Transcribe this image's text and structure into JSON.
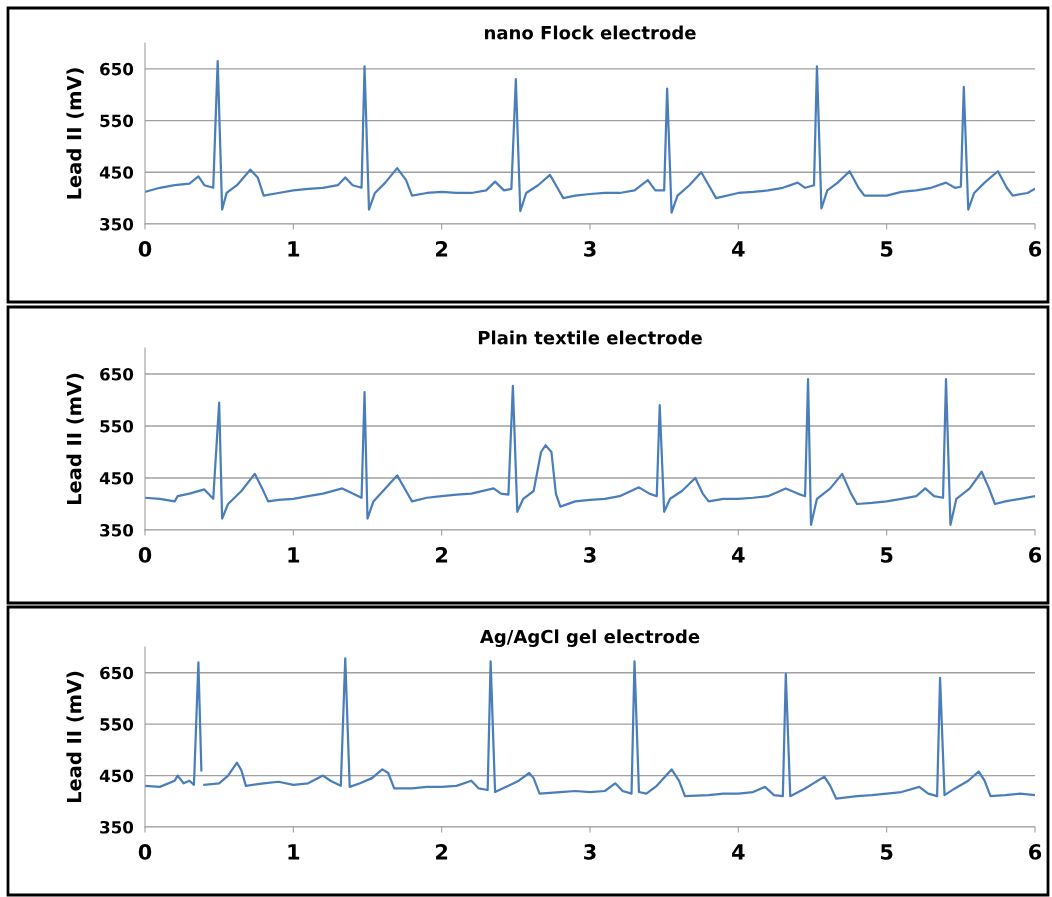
{
  "chart_data": [
    {
      "type": "line",
      "title": "nano Flock electrode",
      "ylabel": "Lead II (mV)",
      "xlim": [
        0,
        6
      ],
      "xticks": [
        0,
        1,
        2,
        3,
        4,
        5,
        6
      ],
      "ylim": [
        350,
        700
      ],
      "yticks": [
        350,
        450,
        550,
        650
      ],
      "grid": "y",
      "legend": false,
      "marker": "none",
      "line_style": "solid",
      "series": [
        {
          "color": "#4a7ebb",
          "x": [
            0,
            0.1,
            0.2,
            0.3,
            0.36,
            0.4,
            0.46,
            0.49,
            0.52,
            0.55,
            0.62,
            0.71,
            0.76,
            0.8,
            0.9,
            1.0,
            1.1,
            1.2,
            1.3,
            1.35,
            1.4,
            1.46,
            1.48,
            1.51,
            1.55,
            1.62,
            1.7,
            1.76,
            1.8,
            1.9,
            2.0,
            2.1,
            2.2,
            2.3,
            2.36,
            2.42,
            2.47,
            2.5,
            2.53,
            2.57,
            2.65,
            2.73,
            2.78,
            2.82,
            2.9,
            3.0,
            3.1,
            3.2,
            3.3,
            3.39,
            3.44,
            3.5,
            3.52,
            3.55,
            3.59,
            3.67,
            3.75,
            3.81,
            3.85,
            4.0,
            4.1,
            4.2,
            4.3,
            4.4,
            4.45,
            4.51,
            4.53,
            4.56,
            4.6,
            4.67,
            4.75,
            4.81,
            4.85,
            5.0,
            5.1,
            5.2,
            5.3,
            5.4,
            5.46,
            5.5,
            5.52,
            5.55,
            5.59,
            5.66,
            5.75,
            5.81,
            5.85,
            5.95,
            6.0
          ],
          "values": [
            412,
            420,
            425,
            428,
            442,
            425,
            420,
            665,
            378,
            410,
            425,
            455,
            440,
            405,
            410,
            415,
            418,
            420,
            425,
            440,
            425,
            420,
            655,
            378,
            410,
            430,
            458,
            435,
            405,
            410,
            412,
            410,
            410,
            415,
            432,
            415,
            418,
            630,
            375,
            410,
            425,
            445,
            420,
            400,
            405,
            408,
            410,
            410,
            415,
            435,
            415,
            415,
            612,
            372,
            405,
            425,
            450,
            420,
            400,
            410,
            412,
            415,
            420,
            430,
            420,
            425,
            655,
            380,
            415,
            430,
            452,
            420,
            405,
            405,
            412,
            415,
            420,
            430,
            420,
            422,
            615,
            378,
            410,
            430,
            452,
            420,
            405,
            410,
            418
          ]
        }
      ]
    },
    {
      "type": "line",
      "title": "Plain textile electrode",
      "ylabel": "Lead II (mV)",
      "xlim": [
        0,
        6
      ],
      "xticks": [
        0,
        1,
        2,
        3,
        4,
        5,
        6
      ],
      "ylim": [
        350,
        700
      ],
      "yticks": [
        350,
        450,
        550,
        650
      ],
      "grid": "y",
      "legend": false,
      "marker": "none",
      "line_style": "solid",
      "series": [
        {
          "color": "#4a7ebb",
          "x": [
            0,
            0.1,
            0.2,
            0.22,
            0.3,
            0.4,
            0.46,
            0.5,
            0.52,
            0.56,
            0.65,
            0.74,
            0.79,
            0.83,
            0.9,
            1.0,
            1.1,
            1.2,
            1.33,
            1.4,
            1.46,
            1.48,
            1.5,
            1.54,
            1.62,
            1.7,
            1.76,
            1.8,
            1.9,
            2.0,
            2.1,
            2.2,
            2.35,
            2.4,
            2.45,
            2.48,
            2.51,
            2.55,
            2.62,
            2.67,
            2.7,
            2.74,
            2.77,
            2.8,
            2.9,
            3.0,
            3.1,
            3.2,
            3.33,
            3.4,
            3.45,
            3.47,
            3.5,
            3.54,
            3.62,
            3.71,
            3.76,
            3.8,
            3.9,
            4.0,
            4.1,
            4.2,
            4.32,
            4.4,
            4.45,
            4.47,
            4.49,
            4.53,
            4.62,
            4.7,
            4.76,
            4.8,
            4.9,
            5.0,
            5.1,
            5.2,
            5.26,
            5.32,
            5.38,
            5.4,
            5.43,
            5.47,
            5.56,
            5.64,
            5.69,
            5.73,
            5.8,
            5.9,
            6.0
          ],
          "values": [
            412,
            410,
            405,
            415,
            420,
            428,
            410,
            595,
            372,
            400,
            425,
            458,
            430,
            405,
            408,
            410,
            415,
            420,
            430,
            420,
            412,
            615,
            372,
            405,
            430,
            455,
            425,
            405,
            412,
            415,
            418,
            420,
            430,
            420,
            418,
            627,
            385,
            410,
            425,
            500,
            513,
            500,
            420,
            395,
            405,
            408,
            410,
            415,
            432,
            420,
            415,
            590,
            385,
            410,
            425,
            450,
            420,
            405,
            410,
            410,
            412,
            415,
            430,
            420,
            415,
            640,
            360,
            410,
            430,
            458,
            420,
            400,
            402,
            405,
            410,
            415,
            430,
            415,
            412,
            640,
            360,
            410,
            430,
            462,
            430,
            400,
            405,
            410,
            415
          ]
        }
      ]
    },
    {
      "type": "line",
      "title": "Ag/AgCl gel electrode",
      "ylabel": "Lead II (mV)",
      "xlim": [
        0,
        6
      ],
      "xticks": [
        0,
        1,
        2,
        3,
        4,
        5,
        6
      ],
      "ylim": [
        350,
        700
      ],
      "yticks": [
        350,
        450,
        550,
        650
      ],
      "grid": "y",
      "legend": false,
      "marker": "none",
      "line_style": "solid",
      "series": [
        {
          "color": "#4a7ebb",
          "x": [
            0,
            0.1,
            0.2,
            0.22,
            0.26,
            0.3,
            0.33,
            0.36,
            0.38,
            0.39,
            0.4,
            0.5,
            0.56,
            0.62,
            0.65,
            0.68,
            0.8,
            0.9,
            1.0,
            1.1,
            1.2,
            1.25,
            1.32,
            1.35,
            1.38,
            1.45,
            1.53,
            1.6,
            1.64,
            1.68,
            1.8,
            1.9,
            2.0,
            2.1,
            2.2,
            2.25,
            2.31,
            2.33,
            2.36,
            2.45,
            2.52,
            2.59,
            2.62,
            2.66,
            2.8,
            2.9,
            3.0,
            3.1,
            3.17,
            3.22,
            3.28,
            3.3,
            3.33,
            3.38,
            3.45,
            3.55,
            3.6,
            3.64,
            3.8,
            3.9,
            4.0,
            4.1,
            4.18,
            4.24,
            4.3,
            4.32,
            4.35,
            4.45,
            4.58,
            4.62,
            4.66,
            4.8,
            4.9,
            5.0,
            5.1,
            5.22,
            5.28,
            5.34,
            5.36,
            5.39,
            5.46,
            5.55,
            5.62,
            5.66,
            5.7,
            5.8,
            5.9,
            6.0
          ],
          "values": [
            430,
            428,
            440,
            450,
            435,
            440,
            432,
            670,
            460,
            null,
            432,
            435,
            450,
            475,
            460,
            430,
            435,
            438,
            432,
            435,
            450,
            440,
            430,
            678,
            428,
            435,
            445,
            462,
            455,
            425,
            425,
            428,
            428,
            430,
            440,
            425,
            422,
            672,
            418,
            430,
            440,
            455,
            445,
            415,
            418,
            420,
            418,
            420,
            435,
            420,
            415,
            672,
            418,
            415,
            430,
            462,
            440,
            410,
            412,
            415,
            415,
            418,
            428,
            412,
            410,
            648,
            410,
            425,
            448,
            430,
            405,
            410,
            412,
            415,
            418,
            428,
            415,
            410,
            640,
            412,
            425,
            440,
            458,
            440,
            410,
            412,
            415,
            412
          ]
        }
      ]
    }
  ]
}
